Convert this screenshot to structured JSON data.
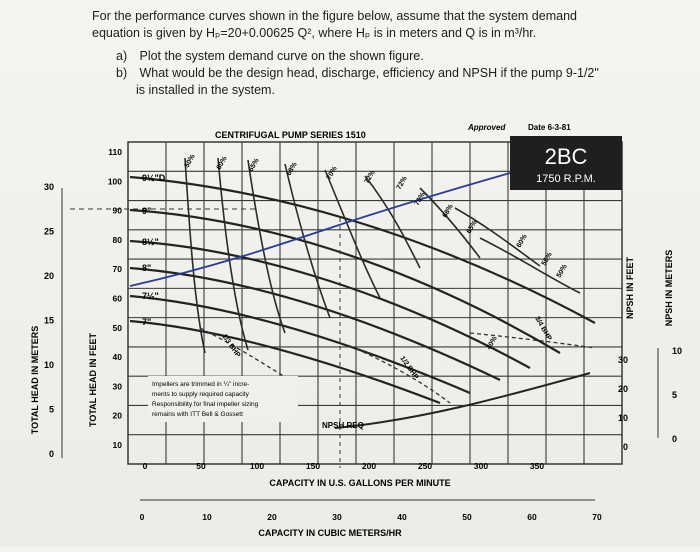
{
  "question": {
    "line1": "For the performance curves shown in the figure below, assume that the system demand",
    "line2": "equation is given by Hₚ=20+0.00625 Q², where Hₚ is in meters and Q is in m³/hr.",
    "a_label": "a)",
    "a_text": "Plot the system demand curve on the shown figure.",
    "b_label": "b)",
    "b_text": "What would be the design head, discharge, efficiency and NPSH if the pump 9-1/2\"",
    "b_text2": "is installed in the system."
  },
  "chart": {
    "series_title": "CENTRIFUGAL PUMP SERIES 1510",
    "approved": "Approved",
    "date": "Date 6-3-81",
    "model": "2BC",
    "rpm": "1750 R.P.M.",
    "left_axis_meters": "TOTAL HEAD IN METERS",
    "left_axis_feet": "TOTAL HEAD IN FEET",
    "right_axis_feet": "NPSH IN FEET",
    "right_axis_meters": "NPSH IN METERS",
    "x_axis_gpm": "CAPACITY IN U.S. GALLONS PER MINUTE",
    "x_axis_m3hr": "CAPACITY IN CUBIC METERS/HR",
    "npsh_req": "NPSH REQ",
    "note": [
      "Impellers are trimmed in ¼\" incre-",
      "ments to supply required capacity",
      "Responsibility for final impeller sizing",
      "remains with ITT Bell & Gossett"
    ],
    "impellers": [
      "9½\"D",
      "9\"",
      "8½\"",
      "8\"",
      "7½\"",
      "7\""
    ],
    "hp_labels": [
      "1/3 BHP",
      "1/2 BHP",
      "3/4 BHP"
    ],
    "eff_labels": [
      "50%",
      "60%",
      "65%",
      "68%",
      "70%",
      "72%",
      "72%",
      "70%",
      "68%",
      "65%",
      "60%",
      "55%",
      "50%",
      "40%"
    ],
    "ticks_feet": [
      "110",
      "100",
      "90",
      "80",
      "70",
      "60",
      "50",
      "40",
      "30",
      "20",
      "10"
    ],
    "ticks_meters": [
      "30",
      "25",
      "20",
      "15",
      "10",
      "5",
      "0"
    ],
    "ticks_gpm": [
      "0",
      "50",
      "100",
      "150",
      "200",
      "250",
      "300",
      "350"
    ],
    "ticks_m3hr": [
      "0",
      "10",
      "20",
      "30",
      "40",
      "50",
      "60",
      "70"
    ],
    "ticks_npsh_ft": [
      "30",
      "20",
      "10",
      "0"
    ],
    "ticks_npsh_m": [
      "10",
      "5",
      "0"
    ]
  }
}
